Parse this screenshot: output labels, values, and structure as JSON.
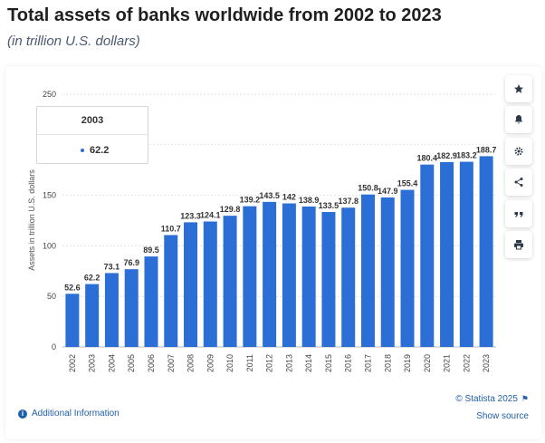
{
  "header": {
    "title": "Total assets of banks worldwide from 2002 to 2023",
    "subtitle": "(in trillion U.S. dollars)"
  },
  "tooltip": {
    "year": "2003",
    "bullet": "•",
    "value": "62.2"
  },
  "footer": {
    "additional_info": "Additional Information",
    "info_glyph": "i",
    "copyright": "© Statista 2025",
    "flag_glyph": "⚑",
    "show_source": "Show source"
  },
  "sidebar": {
    "items": [
      "star-icon",
      "bell-icon",
      "gear-icon",
      "share-icon",
      "quote-icon",
      "print-icon"
    ]
  },
  "colors": {
    "bar": "#2b6fd6",
    "grid": "#e2e2e2",
    "axis_text": "#444444",
    "tooltip_dot": "#2b6fd6"
  },
  "chart_data": {
    "type": "bar",
    "categories": [
      "2002",
      "2003",
      "2004",
      "2005",
      "2006",
      "2007",
      "2008",
      "2009",
      "2010",
      "2011",
      "2012",
      "2013",
      "2014",
      "2015",
      "2016",
      "2017",
      "2018",
      "2019",
      "2020",
      "2021",
      "2022",
      "2023"
    ],
    "values": [
      52.6,
      62.2,
      73.1,
      76.9,
      89.5,
      110.7,
      123.3,
      124.1,
      129.8,
      139.2,
      143.5,
      142,
      138.9,
      133.5,
      137.8,
      150.8,
      147.9,
      155.4,
      180.4,
      182.9,
      183.2,
      188.7
    ],
    "labels": [
      "52.6",
      "62.2",
      "73.1",
      "76.9",
      "89.5",
      "110.7",
      "123.3",
      "124.1",
      "129.8",
      "139.2",
      "143.5",
      "142",
      "138.9",
      "133.5",
      "137.8",
      "150.8",
      "147.9",
      "155.4",
      "180.4",
      "182.9",
      "183.2",
      "188.7"
    ],
    "ylabel": "Assets in trillion U.S. dollars",
    "ylim": [
      0,
      250
    ],
    "yticks": [
      0,
      50,
      100,
      150,
      200,
      250
    ],
    "grid": true,
    "legend": "none"
  }
}
